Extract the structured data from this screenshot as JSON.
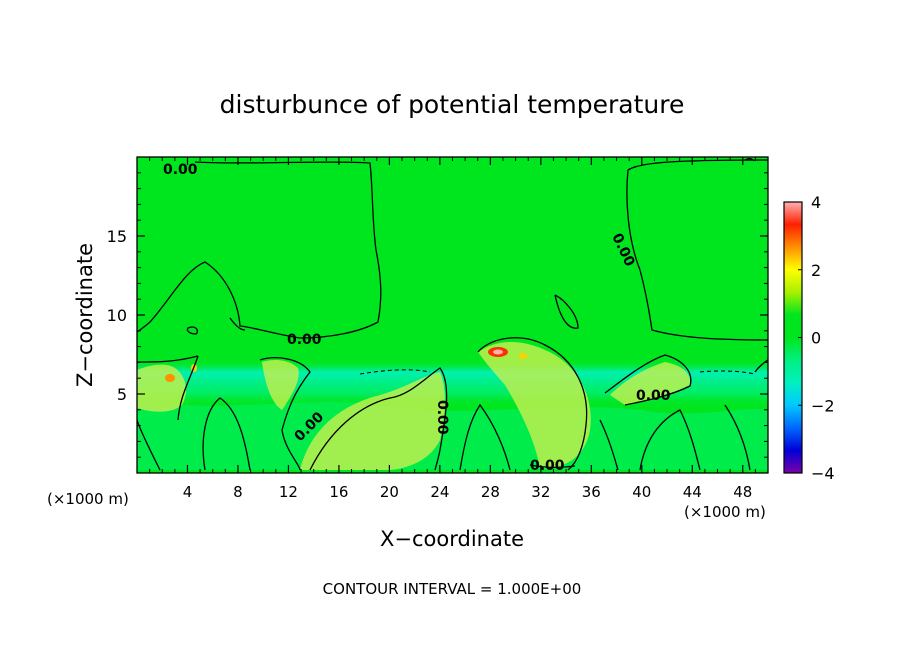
{
  "chart_data": {
    "type": "heatmap",
    "title": "disturbunce of potential temperature",
    "xlabel": "X−coordinate",
    "ylabel": "Z−coordinate",
    "xlim": [
      0,
      50
    ],
    "ylim": [
      0,
      20
    ],
    "x_ticks": [
      4,
      8,
      12,
      16,
      20,
      24,
      28,
      32,
      36,
      40,
      44,
      48
    ],
    "y_ticks": [
      5,
      10,
      15
    ],
    "x_unit": "(×1000 m)",
    "z_unit": "(×1000 m)",
    "colorbar": {
      "min": -4,
      "max": 4,
      "ticks": [
        4,
        2,
        0,
        -2,
        -4
      ],
      "tick_labels": [
        "4",
        "2",
        "0",
        "−2",
        "−4"
      ],
      "colors": [
        "#7a00a8",
        "#0000d8",
        "#0068ff",
        "#00c8ff",
        "#00f0c0",
        "#00f080",
        "#00e61e",
        "#00e61e",
        "#a8f000",
        "#ffff00",
        "#ff9000",
        "#ff2000",
        "#ffb0b0"
      ]
    },
    "contour_label": "0.00",
    "contour_labels_count": 7,
    "contour_interval_text": "CONTOUR INTERVAL = 1.000E+00",
    "colors": {
      "background": "#00e61e",
      "inversion_band": "#00f0a0",
      "positive": "#c8f050",
      "warm_core": "#ff3000"
    }
  }
}
